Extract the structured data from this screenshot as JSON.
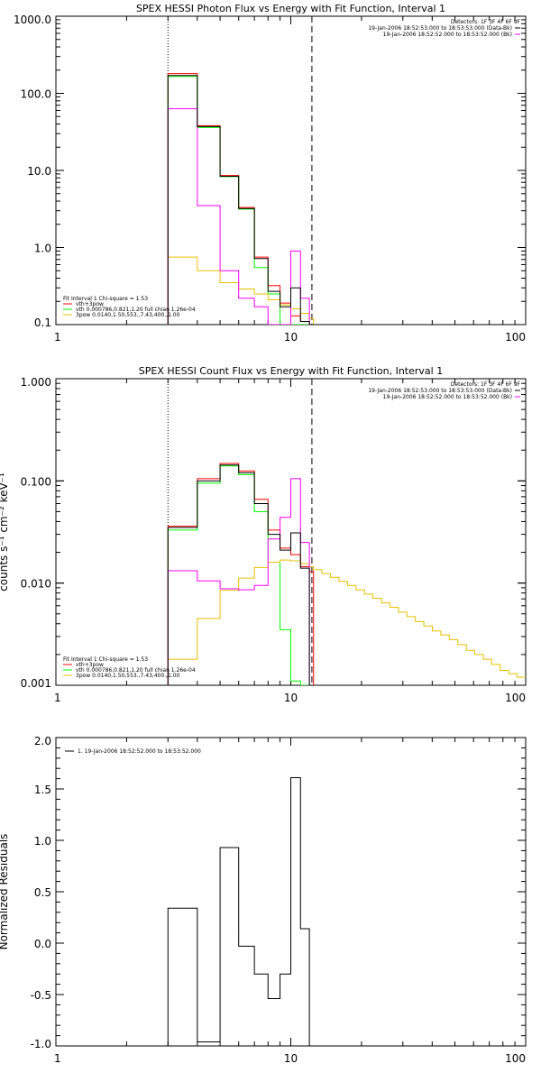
{
  "colors": {
    "black": "#000000",
    "red": "#ff0000",
    "green": "#00ff00",
    "magenta": "#ff00ff",
    "yellow": "#e6c000"
  },
  "chart_data": [
    {
      "type": "line",
      "title": "SPEX HESSI Photon Flux vs Energy with Fit Function, Interval 1",
      "xlabel": "",
      "ylabel": "",
      "xscale": "log",
      "yscale": "log",
      "xlim": [
        1,
        100
      ],
      "ylim": [
        0.1,
        1000
      ],
      "xticks": [
        "1",
        "10",
        "100"
      ],
      "yticks": [
        "0.1",
        "1.0",
        "10.0",
        "100.0",
        "1000.0"
      ],
      "energy_range_markers": [
        3,
        12.3
      ],
      "bin_edges": [
        3.0,
        3.5,
        4.0,
        4.5,
        5.0,
        5.5,
        6.0,
        6.5,
        7.0,
        7.5,
        8.0,
        8.5,
        9.0,
        9.5,
        10.0,
        10.5,
        11.0,
        11.5,
        12.0,
        12.5
      ],
      "top_right_labels": [
        "Detectors: 1F 3F 4F 6F 9F",
        "19-Jan-2006 18:52:53.000 to 18:53:53.000 (Data-Bk)",
        "19-Jan-2006 18:52:52.000 to 18:53:52.000 (Bk)"
      ],
      "bottom_left_labels": [
        "Fit Interval 1    Chi-square = 1.53",
        "vth+3pow",
        "vth 0.000786,0.821,1.20  full chian 1.26e-04",
        "3pow 0.0140,1.50,553.,7.43,400.,1.00"
      ],
      "series": [
        {
          "name": "vth+3pow",
          "color": "#ff0000",
          "values": [
            180,
            180,
            38,
            38,
            8.6,
            8.6,
            3.3,
            3.3,
            0.75,
            0.75,
            0.32,
            0.32,
            0.19,
            0.19,
            0.13,
            0.13,
            0.11,
            0.11,
            0.1
          ]
        },
        {
          "name": "vth 0.000786,0.821,1.20  full chian 1.26e-04",
          "color": "#00ff00",
          "values": [
            165,
            165,
            36,
            36,
            8.3,
            8.3,
            3.15,
            3.15,
            0.55,
            0.55,
            0.25,
            0.25,
            0.1,
            0.1,
            0.1,
            0.1,
            0.1,
            0.1,
            0.1
          ]
        },
        {
          "name": "3pow 0.0140,1.50,553.,7.43,400.,1.00",
          "color": "#e6c000",
          "values": [
            0.75,
            0.75,
            0.5,
            0.5,
            0.35,
            0.35,
            0.29,
            0.29,
            0.25,
            0.25,
            0.21,
            0.21,
            0.18,
            0.18,
            0.16,
            0.16,
            0.14,
            0.14,
            0.12
          ]
        },
        {
          "name": "",
          "color": "#ff00ff",
          "values": [
            63,
            63,
            3.5,
            3.5,
            0.5,
            0.5,
            0.22,
            0.22,
            0.17,
            0.17,
            0.1,
            0.1,
            0.1,
            0.1,
            0.9,
            0.9,
            0.22,
            0.22,
            0.1
          ]
        },
        {
          "name": "",
          "color": "#000000",
          "values": [
            170,
            170,
            37,
            37,
            8.4,
            8.4,
            3.2,
            3.2,
            0.72,
            0.72,
            0.27,
            0.27,
            0.17,
            0.17,
            0.3,
            0.3,
            0.11,
            0.11,
            0.1
          ]
        }
      ]
    },
    {
      "type": "line",
      "title": "SPEX HESSI Count Flux vs Energy with Fit Function, Interval 1",
      "xlabel": "",
      "ylabel": "counts s⁻¹ cm⁻² keV⁻¹",
      "xscale": "log",
      "yscale": "log",
      "xlim": [
        1,
        100
      ],
      "ylim": [
        0.001,
        1
      ],
      "xticks": [
        "1",
        "10",
        "100"
      ],
      "yticks": [
        "0.001",
        "0.010",
        "0.100",
        "1.000"
      ],
      "energy_range_markers": [
        3,
        12.3
      ],
      "bin_edges": [
        3.0,
        3.5,
        4.0,
        4.5,
        5.0,
        5.5,
        6.0,
        6.5,
        7.0,
        7.5,
        8.0,
        8.5,
        9.0,
        9.5,
        10.0,
        10.5,
        11.0,
        11.5,
        12.0,
        12.5
      ],
      "top_right_labels": [
        "Detectors: 1F 3F 4F 6F 9F",
        "19-Jan-2006 18:52:53.000 to 18:53:53.000 (Data-Bk)",
        "19-Jan-2006 18:52:52.000 to 18:53:52.000 (Bk)"
      ],
      "bottom_left_labels": [
        "Fit Interval 1    Chi-square = 1.53",
        "vth+3pow",
        "vth 0.000786,0.821,1.20  full chian 1.26e-04",
        "3pow 0.0140,1.50,553.,7.43,400.,1.00"
      ],
      "series": [
        {
          "name": "vth+3pow",
          "color": "#ff0000",
          "values": [
            0.036,
            0.036,
            0.105,
            0.105,
            0.148,
            0.148,
            0.125,
            0.125,
            0.066,
            0.066,
            0.033,
            0.033,
            0.022,
            0.022,
            0.019,
            0.019,
            0.0145,
            0.0145,
            0.013
          ]
        },
        {
          "name": "vth 0.000786,0.821,1.20  full chian 1.26e-04",
          "color": "#00ff00",
          "values": [
            0.033,
            0.033,
            0.095,
            0.095,
            0.14,
            0.14,
            0.115,
            0.115,
            0.05,
            0.05,
            0.016,
            0.016,
            0.0035,
            0.0035,
            0.0011,
            0.0011,
            0.001,
            0.001,
            0.001
          ]
        },
        {
          "name": "3pow 0.0140,1.50,553.,7.43,400.,1.00",
          "color": "#e6c000",
          "x_end": 100,
          "values": [
            0.0018,
            0.0018,
            0.0045,
            0.0045,
            0.0085,
            0.0085,
            0.0112,
            0.0112,
            0.0142,
            0.0142,
            0.016,
            0.016,
            0.0168,
            0.0168,
            0.0165,
            0.0165,
            0.0155,
            0.0155,
            0.0145,
            0.0135,
            0.0124,
            0.0114,
            0.0104,
            0.0095,
            0.0086,
            0.0078,
            0.0071,
            0.0064,
            0.0058,
            0.0052,
            0.0047,
            0.0042,
            0.0038,
            0.0034,
            0.0031,
            0.0028,
            0.0025,
            0.0022,
            0.002,
            0.0018,
            0.0016,
            0.0014,
            0.0013,
            0.0012
          ]
        },
        {
          "name": "",
          "color": "#ff00ff",
          "values": [
            0.0132,
            0.0132,
            0.0105,
            0.0105,
            0.0088,
            0.0088,
            0.0086,
            0.0086,
            0.0095,
            0.0095,
            0.027,
            0.027,
            0.044,
            0.044,
            0.105,
            0.105,
            0.025,
            0.025,
            0.001
          ]
        },
        {
          "name": "",
          "color": "#000000",
          "values": [
            0.035,
            0.035,
            0.1,
            0.1,
            0.143,
            0.143,
            0.12,
            0.12,
            0.06,
            0.06,
            0.03,
            0.03,
            0.021,
            0.021,
            0.031,
            0.031,
            0.014,
            0.014,
            0.001
          ]
        }
      ]
    },
    {
      "type": "line",
      "title": "",
      "xlabel": "",
      "ylabel": "Normalized Residuals",
      "xscale": "log",
      "yscale": "linear",
      "xlim": [
        1,
        100
      ],
      "ylim": [
        -1.0,
        2.0
      ],
      "xticks": [
        "1",
        "10",
        "100"
      ],
      "yticks": [
        "-1.0",
        "-0.5",
        "0.0",
        "0.5",
        "1.0",
        "1.5",
        "2.0"
      ],
      "top_left_labels": [
        "1. 19-Jan-2006 18:52:52.000 to 18:53:52.000"
      ],
      "bin_edges": [
        3.0,
        3.5,
        4.0,
        4.5,
        5.0,
        5.5,
        6.0,
        6.5,
        7.0,
        7.5,
        8.0,
        8.5,
        9.0,
        9.5,
        10.0,
        10.5,
        11.0,
        11.5,
        12.0,
        12.5
      ],
      "series": [
        {
          "name": "1. 19-Jan-2006 18:52:52.000 to 18:53:52.000",
          "color": "#000000",
          "values": [
            0.34,
            0.34,
            -0.96,
            -0.96,
            0.93,
            0.93,
            -0.03,
            -0.03,
            -0.3,
            -0.3,
            -0.54,
            -0.54,
            -0.3,
            -0.3,
            1.61,
            1.61,
            0.14,
            0.14,
            null
          ]
        }
      ]
    }
  ]
}
